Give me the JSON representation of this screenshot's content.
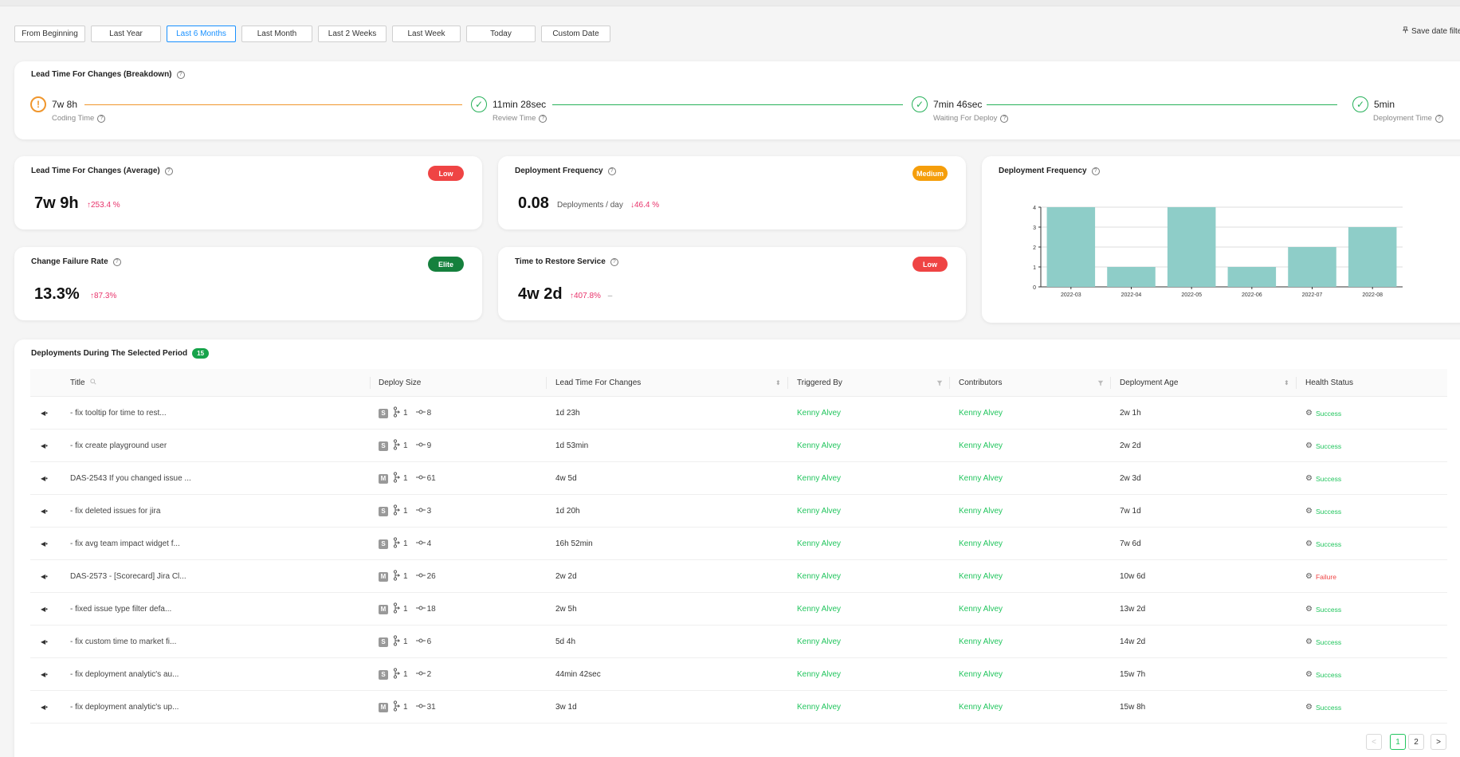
{
  "date_filters": [
    {
      "label": "From Beginning",
      "active": false
    },
    {
      "label": "Last Year",
      "active": false
    },
    {
      "label": "Last 6 Months",
      "active": true
    },
    {
      "label": "Last Month",
      "active": false
    },
    {
      "label": "Last 2 Weeks",
      "active": false
    },
    {
      "label": "Last Week",
      "active": false
    },
    {
      "label": "Today",
      "active": false
    },
    {
      "label": "Custom Date",
      "active": false
    }
  ],
  "save_filter_label": "Save date filte",
  "breakdown": {
    "title": "Lead Time For Changes (Breakdown)",
    "stages": [
      {
        "value": "7w 8h",
        "label": "Coding Time",
        "status": "warning"
      },
      {
        "value": "11min 28sec",
        "label": "Review Time",
        "status": "ok"
      },
      {
        "value": "7min 46sec",
        "label": "Waiting For Deploy",
        "status": "ok"
      },
      {
        "value": "5min",
        "label": "Deployment Time",
        "status": "ok"
      }
    ]
  },
  "metrics": {
    "lead_time": {
      "title": "Lead Time For Changes (Average)",
      "badge": "Low",
      "badge_color": "#ef4444",
      "value": "7w 9h",
      "delta": "253.4 %"
    },
    "deploy_freq": {
      "title": "Deployment Frequency",
      "badge": "Medium",
      "badge_color": "#f59e0b",
      "value": "0.08",
      "unit": "Deployments / day",
      "delta": "46.4 %"
    },
    "failure_rate": {
      "title": "Change Failure Rate",
      "badge": "Elite",
      "badge_color": "#15803d",
      "value": "13.3%",
      "delta": "87.3%"
    },
    "restore": {
      "title": "Time to Restore Service",
      "badge": "Low",
      "badge_color": "#ef4444",
      "value": "4w 2d",
      "delta": "407.8%",
      "trail": "–"
    }
  },
  "freq_chart_title": "Deployment Frequency",
  "chart_data": {
    "type": "bar",
    "title": "Deployment Frequency",
    "categories": [
      "2022-03",
      "2022-04",
      "2022-05",
      "2022-06",
      "2022-07",
      "2022-08"
    ],
    "values": [
      4,
      1,
      4,
      1,
      2,
      3
    ],
    "ylim": [
      0,
      4
    ],
    "yticks": [
      0,
      1,
      2,
      3,
      4
    ],
    "bar_color": "#8ecdc8",
    "grid": true
  },
  "deployments": {
    "title": "Deployments During The Selected Period",
    "count": "15",
    "columns": {
      "title": "Title",
      "deploy_size": "Deploy Size",
      "lead_time": "Lead Time For Changes",
      "triggered_by": "Triggered By",
      "contributors": "Contributors",
      "age": "Deployment Age",
      "health": "Health Status"
    },
    "rows": [
      {
        "title": "- fix tooltip for time to rest...",
        "size": "S",
        "prs": "1",
        "commits": "8",
        "lead_time": "1d 23h",
        "triggered_by": "Kenny Alvey",
        "contributors": "Kenny Alvey",
        "age": "2w 1h",
        "health": "Success"
      },
      {
        "title": "- fix create playground user",
        "size": "S",
        "prs": "1",
        "commits": "9",
        "lead_time": "1d 53min",
        "triggered_by": "Kenny Alvey",
        "contributors": "Kenny Alvey",
        "age": "2w 2d",
        "health": "Success"
      },
      {
        "title": "DAS-2543 If you changed issue ...",
        "size": "M",
        "prs": "1",
        "commits": "61",
        "lead_time": "4w 5d",
        "triggered_by": "Kenny Alvey",
        "contributors": "Kenny Alvey",
        "age": "2w 3d",
        "health": "Success"
      },
      {
        "title": "- fix deleted issues for jira",
        "size": "S",
        "prs": "1",
        "commits": "3",
        "lead_time": "1d 20h",
        "triggered_by": "Kenny Alvey",
        "contributors": "Kenny Alvey",
        "age": "7w 1d",
        "health": "Success"
      },
      {
        "title": "- fix avg team impact widget f...",
        "size": "S",
        "prs": "1",
        "commits": "4",
        "lead_time": "16h 52min",
        "triggered_by": "Kenny Alvey",
        "contributors": "Kenny Alvey",
        "age": "7w 6d",
        "health": "Success"
      },
      {
        "title": "DAS-2573 - [Scorecard] Jira Cl...",
        "size": "M",
        "prs": "1",
        "commits": "26",
        "lead_time": "2w 2d",
        "triggered_by": "Kenny Alvey",
        "contributors": "Kenny Alvey",
        "age": "10w 6d",
        "health": "Failure"
      },
      {
        "title": "- fixed issue type filter defa...",
        "size": "M",
        "prs": "1",
        "commits": "18",
        "lead_time": "2w 5h",
        "triggered_by": "Kenny Alvey",
        "contributors": "Kenny Alvey",
        "age": "13w 2d",
        "health": "Success"
      },
      {
        "title": "- fix custom time to market fi...",
        "size": "S",
        "prs": "1",
        "commits": "6",
        "lead_time": "5d 4h",
        "triggered_by": "Kenny Alvey",
        "contributors": "Kenny Alvey",
        "age": "14w 2d",
        "health": "Success"
      },
      {
        "title": "- fix deployment analytic's au...",
        "size": "S",
        "prs": "1",
        "commits": "2",
        "lead_time": "44min 42sec",
        "triggered_by": "Kenny Alvey",
        "contributors": "Kenny Alvey",
        "age": "15w 7h",
        "health": "Success"
      },
      {
        "title": "- fix deployment analytic's up...",
        "size": "M",
        "prs": "1",
        "commits": "31",
        "lead_time": "3w 1d",
        "triggered_by": "Kenny Alvey",
        "contributors": "Kenny Alvey",
        "age": "15w 8h",
        "health": "Success"
      }
    ]
  },
  "pagination": {
    "prev": "<",
    "pages": [
      "1",
      "2"
    ],
    "current": "1",
    "next": ">"
  }
}
